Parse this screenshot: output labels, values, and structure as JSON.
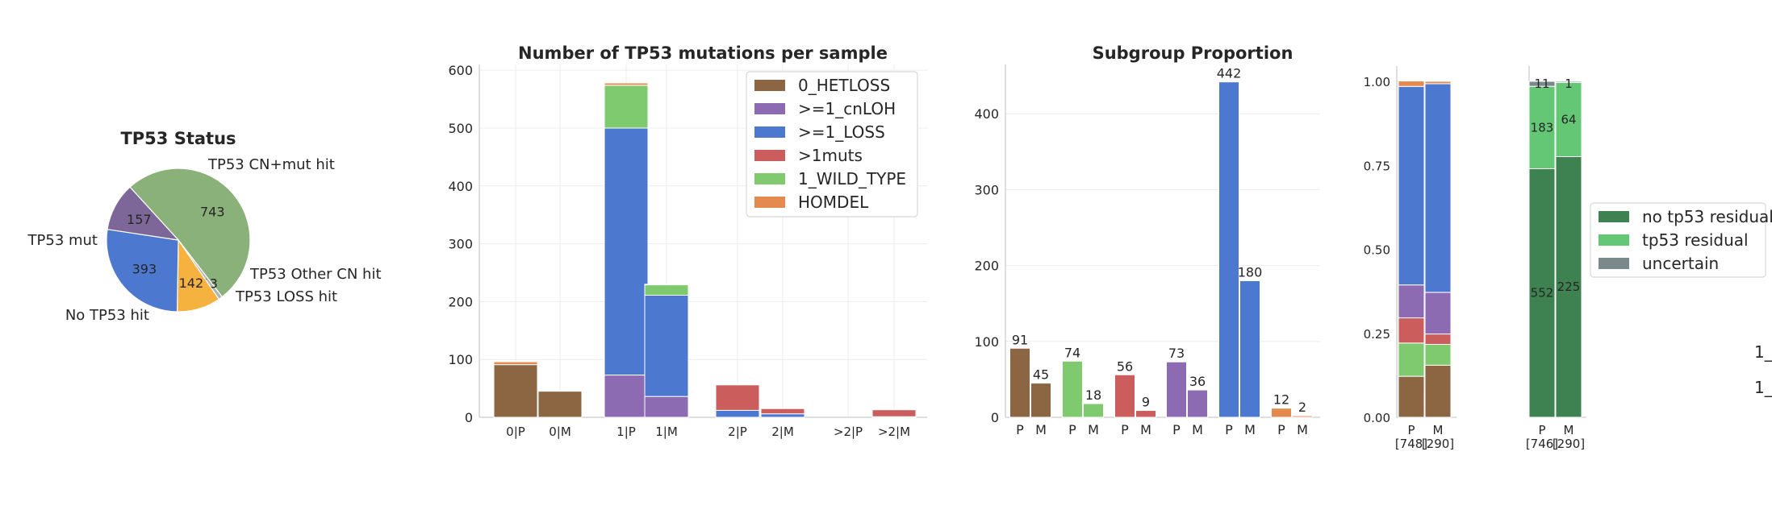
{
  "colors": {
    "0_HETLOSS": "#8c6543",
    ">=1_cnLOH": "#8c6bb2",
    ">=1_LOSS": "#4c78cf",
    ">1muts": "#cc5d5d",
    "1_WILD_TYPE": "#7fc96f",
    "HOMDEL": "#e58a4f",
    "no tp53 residual": "#3d8250",
    "tp53 residual": "#63c776",
    "uncertain": "#7a8a8a",
    "TP53 CN+mut hit": "#8bb17a",
    "TP53 mut": "#7d6698",
    "No TP53 hit": "#4c78cf",
    "TP53 LOSS hit": "#f5b23f",
    "TP53 Other CN hit": "#b3b3b3"
  },
  "chart_data": [
    {
      "type": "pie",
      "title": "TP53 Status",
      "slices": [
        {
          "label": "TP53 CN+mut hit",
          "value": 743
        },
        {
          "label": "TP53 Other CN hit",
          "value": 13
        },
        {
          "label": "TP53 LOSS hit",
          "value": 142
        },
        {
          "label": "No TP53 hit",
          "value": 393
        },
        {
          "label": "TP53 mut",
          "value": 157
        }
      ]
    },
    {
      "type": "bar",
      "stacked": true,
      "title": "Number of TP53 mutations per sample",
      "categories": [
        "0|P",
        "0|M",
        "1|P",
        "1|M",
        "2|P",
        "2|M",
        ">2|P",
        ">2|M"
      ],
      "ylim": [
        0,
        610
      ],
      "yticks": [
        0,
        100,
        200,
        300,
        400,
        500,
        600
      ],
      "grid": true,
      "legend_position": "top-right",
      "series": [
        {
          "name": "0_HETLOSS",
          "values": [
            91,
            45,
            0,
            0,
            0,
            0,
            0,
            0
          ]
        },
        {
          "name": ">=1_cnLOH",
          "values": [
            0,
            0,
            73,
            36,
            0,
            0,
            0,
            0
          ]
        },
        {
          "name": ">=1_LOSS",
          "values": [
            0,
            0,
            427,
            175,
            12,
            6,
            0,
            1
          ]
        },
        {
          "name": ">1muts",
          "values": [
            0,
            0,
            0,
            0,
            44,
            9,
            0,
            12
          ]
        },
        {
          "name": "1_WILD_TYPE",
          "values": [
            0,
            0,
            74,
            18,
            0,
            0,
            0,
            0
          ]
        },
        {
          "name": "HOMDEL",
          "values": [
            5,
            0,
            4,
            1,
            0,
            0,
            0,
            0
          ]
        }
      ]
    },
    {
      "type": "bar",
      "title": "Subgroup Proportion",
      "ylim": [
        0,
        465
      ],
      "yticks": [
        0,
        100,
        200,
        300,
        400
      ],
      "grid": true,
      "groups": [
        {
          "series": "0_HETLOSS",
          "P": 91,
          "M": 45
        },
        {
          "series": "1_WILD_TYPE",
          "P": 74,
          "M": 18
        },
        {
          "series": ">1muts",
          "P": 56,
          "M": 9
        },
        {
          "series": ">=1_cnLOH",
          "P": 73,
          "M": 36
        },
        {
          "series": ">=1_LOSS",
          "P": 442,
          "M": 180
        },
        {
          "series": "HOMDEL",
          "P": 12,
          "M": 2
        }
      ]
    },
    {
      "type": "bar",
      "stacked": true,
      "normalized": true,
      "categories": [
        "P\n[748]",
        "M\n[290]"
      ],
      "ylim": [
        0,
        1
      ],
      "yticks": [
        "0.00",
        "0.25",
        "0.50",
        "0.75",
        "1.00"
      ],
      "series": [
        {
          "name": "0_HETLOSS",
          "values": [
            0.122,
            0.155
          ]
        },
        {
          "name": "1_WILD_TYPE",
          "values": [
            0.099,
            0.062
          ]
        },
        {
          "name": ">1muts",
          "values": [
            0.075,
            0.031
          ]
        },
        {
          "name": ">=1_cnLOH",
          "values": [
            0.098,
            0.124
          ]
        },
        {
          "name": ">=1_LOSS",
          "values": [
            0.591,
            0.621
          ]
        },
        {
          "name": "HOMDEL",
          "values": [
            0.016,
            0.007
          ]
        }
      ]
    },
    {
      "type": "bar",
      "stacked": true,
      "normalized": true,
      "categories": [
        "P\n[746]",
        "M\n[290]"
      ],
      "legend_position": "right",
      "series": [
        {
          "name": "no tp53 residual",
          "values": [
            552,
            225
          ]
        },
        {
          "name": "tp53 residual",
          "values": [
            183,
            64
          ]
        },
        {
          "name": "uncertain",
          "values": [
            11,
            1
          ]
        }
      ]
    }
  ],
  "labels": {
    "pie_title": "TP53 Status",
    "bar_title": "Number of TP53 mutations per sample",
    "sub_title": "Subgroup Proportion",
    "legend_main": [
      "0_HETLOSS",
      ">=1_cnLOH",
      ">=1_LOSS",
      ">1muts",
      "1_WILD_TYPE",
      "HOMDEL"
    ],
    "legend_res": [
      "no tp53 residual",
      "tp53 residual",
      "uncertain"
    ],
    "prop_ticks": [
      "P",
      "M"
    ],
    "prop_counts": [
      "[748]",
      "[290]"
    ],
    "res_counts": [
      "[746]",
      "[290]"
    ],
    "sub_xticks": [
      "P",
      "M"
    ],
    "cut_texts": [
      "1_",
      "1_\\"
    ]
  }
}
